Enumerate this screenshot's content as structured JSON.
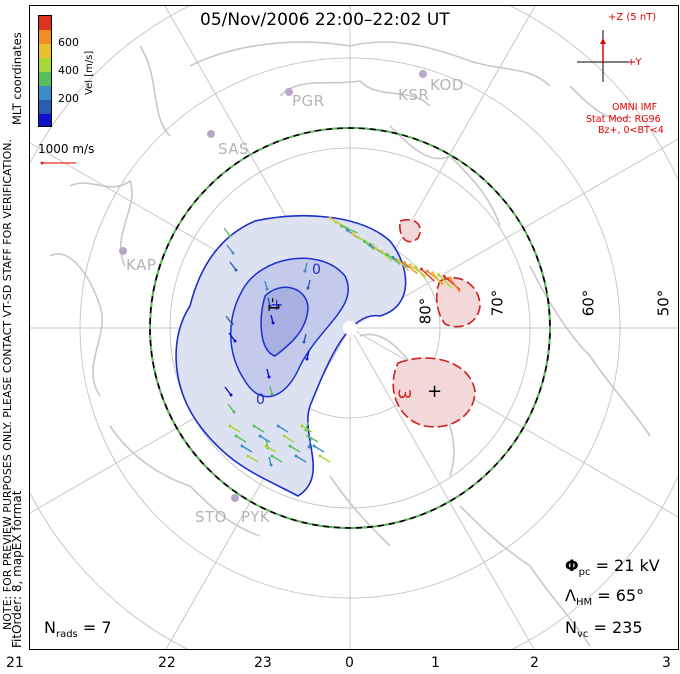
{
  "title": "05/Nov/2006 22:00–22:02 UT",
  "imf": {
    "axis_z_label": "+Z (5 nT)",
    "axis_y_label": "+Y",
    "source": "OMNI IMF",
    "stat_mod": "Stat Mod: RG96",
    "condition": "Bz+, 0<BT<4",
    "color": "#e00000"
  },
  "side_notes": {
    "mlt_coordinates": "MLT coordinates",
    "preview_note": "NOTE: FOR PREVIEW PURPOSES ONLY. PLEASE CONTACT VT-SD STAFF FOR VERIFICATION.",
    "fit_order": "FitOrder: 8, mapEX format"
  },
  "velocity_legend": {
    "axis_label": "Vel [m/s]",
    "ticks": [
      "600",
      "400",
      "200"
    ],
    "colors": [
      "#e03020",
      "#f08c20",
      "#e8c030",
      "#a8d838",
      "#58c058",
      "#3c8cc8",
      "#2c5cb0",
      "#1010d0"
    ],
    "scale_label": "1000 m/s"
  },
  "stations": [
    "PGR",
    "KOD",
    "KSR",
    "SAS",
    "KAP",
    "STO",
    "PYK"
  ],
  "latitude_labels": [
    "80°",
    "70°",
    "60°",
    "50°"
  ],
  "mlt_axis": [
    "21",
    "22",
    "23",
    "0",
    "1",
    "2",
    "3"
  ],
  "contours": {
    "negative_label": "-1",
    "positive_label": "3",
    "zero_label_a": "0",
    "zero_label_b": "0"
  },
  "stats": {
    "phi_pc_label": "Φ",
    "phi_pc_sub": "pc",
    "phi_pc_value": "= 21 kV",
    "lambda_hm_label": "Λ",
    "lambda_hm_sub": "HM",
    "lambda_hm_value": "= 65°",
    "nvc_label": "N",
    "nvc_sub": "vc",
    "nvc_value": "= 235",
    "nrads_label": "N",
    "nrads_sub": "rads",
    "nrads_value": "= 7"
  }
}
